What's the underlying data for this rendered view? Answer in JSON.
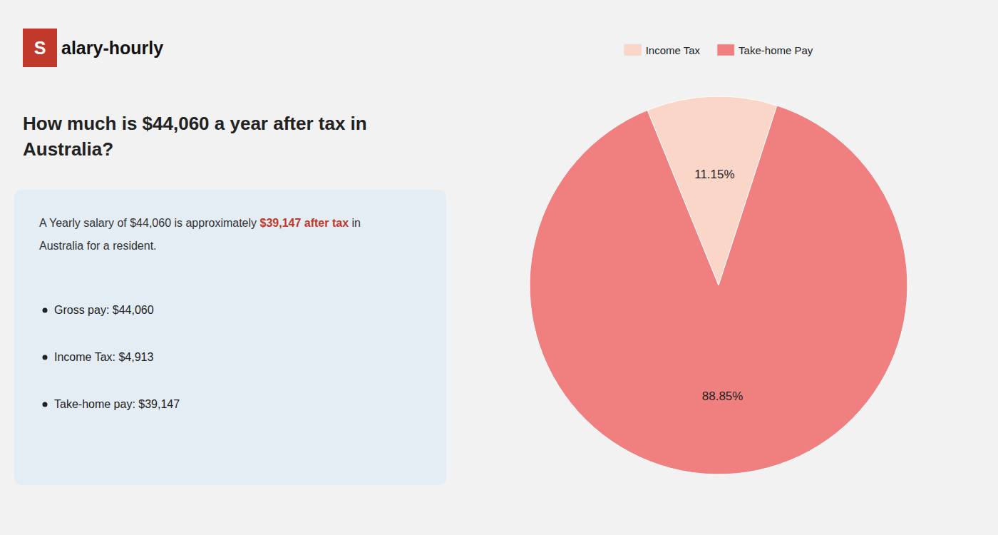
{
  "chart_data": {
    "type": "pie",
    "title": "How much is $44,060 a year after tax in\nAustralia?",
    "categories": [
      "Income Tax",
      "Take-home Pay"
    ],
    "values": [
      11.15,
      88.85
    ],
    "value_labels": [
      "11.15%",
      "88.85%"
    ],
    "colors": [
      "#fad6c8",
      "#f08080"
    ],
    "data_labels": true,
    "legend": "top",
    "annotations": [
      "S",
      "alary-hourly",
      "A Yearly salary of $44,060 is approximately ",
      "$39,147 after tax",
      " in",
      "Australia for a resident.",
      "Gross pay: $44,060",
      "Income Tax: $4,913",
      "Take-home pay: $39,147"
    ]
  }
}
